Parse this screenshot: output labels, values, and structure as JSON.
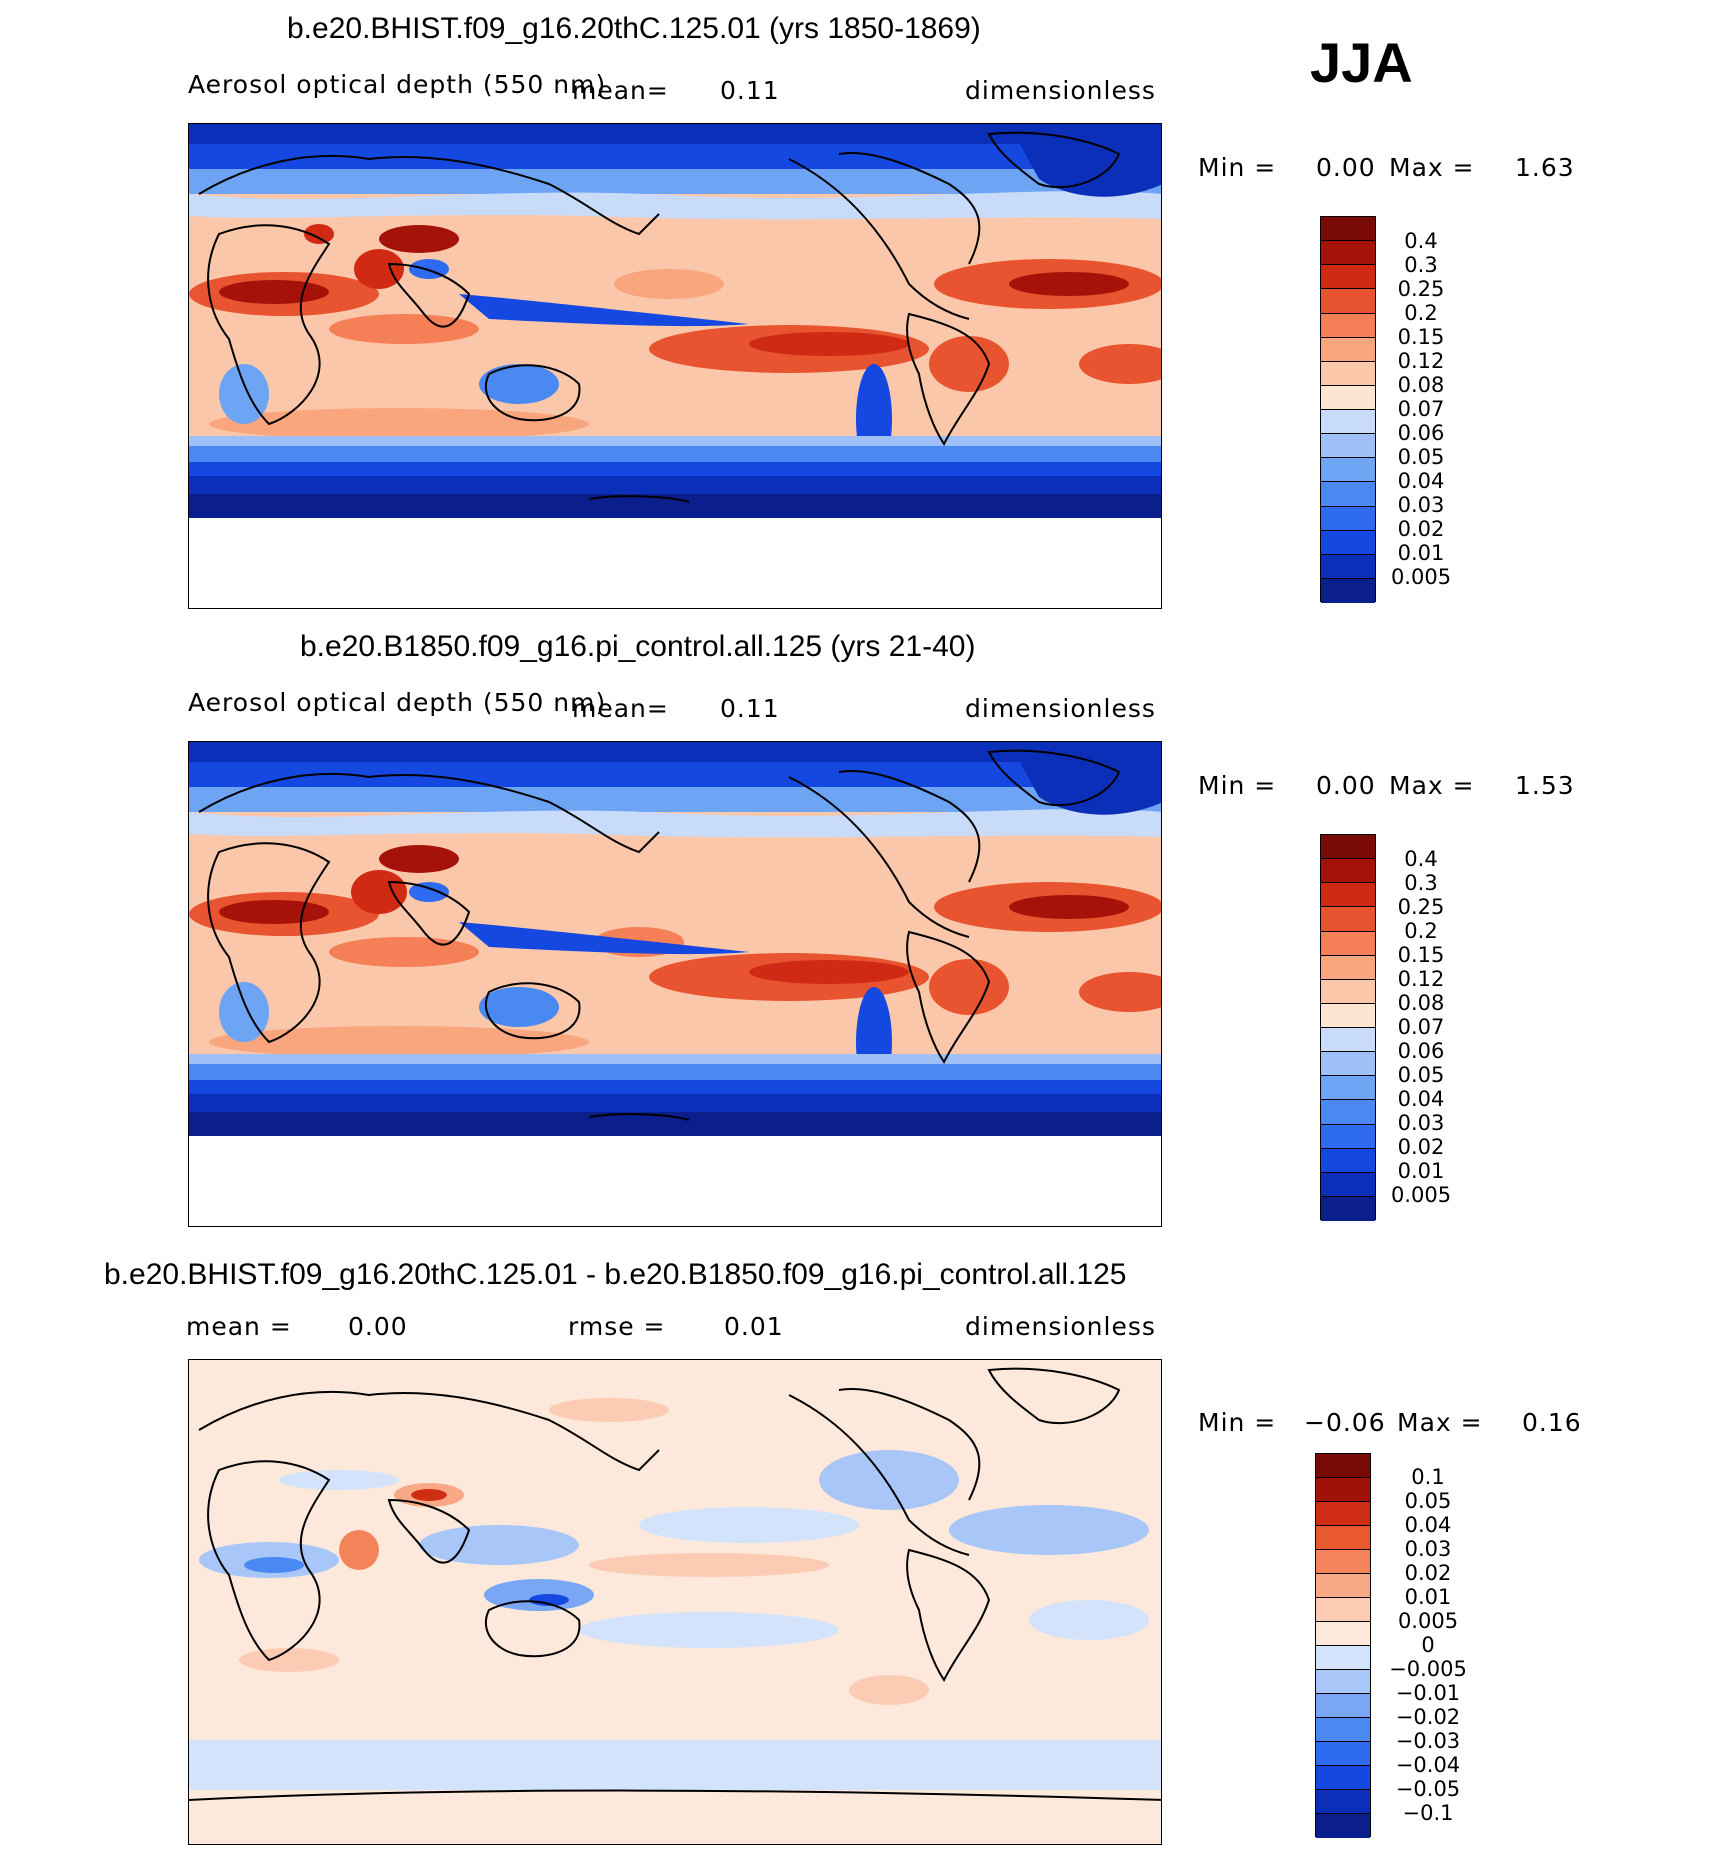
{
  "season": "JJA",
  "colors": {
    "aod_levels": [
      "#0a1f8c",
      "#0b2fb8",
      "#1548e0",
      "#2e6bf0",
      "#4a88f2",
      "#6ea4f4",
      "#9ec0f7",
      "#c8dcfa",
      "#fde5d2",
      "#fbc7aa",
      "#f9a57e",
      "#f57f56",
      "#e8542f",
      "#d02a14",
      "#a5120a",
      "#7a0a05"
    ],
    "diff_levels": [
      "#0a1f8c",
      "#0b2fb8",
      "#1548e0",
      "#2e6bf0",
      "#4a88f2",
      "#7aa7f5",
      "#a9c6f8",
      "#d3e3fb",
      "#fde9dc",
      "#fbccb3",
      "#f9a886",
      "#f5835a",
      "#e9592f",
      "#d02e14",
      "#a01108",
      "#7a0a05"
    ]
  },
  "panels": [
    {
      "title": "b.e20.BHIST.f09_g16.20thC.125.01 (yrs 1850-1869)",
      "left_label": "Aerosol optical depth (550 nm)",
      "mean_label": "mean=",
      "mean_value": "0.11",
      "units": "dimensionless",
      "min_label": "Min =",
      "min_value": "0.00",
      "max_label": "Max =",
      "max_value": "1.63",
      "colorbar_labels": [
        "0.4",
        "0.3",
        "0.25",
        "0.2",
        "0.15",
        "0.12",
        "0.08",
        "0.07",
        "0.06",
        "0.05",
        "0.04",
        "0.03",
        "0.02",
        "0.01",
        "0.005"
      ]
    },
    {
      "title": "b.e20.B1850.f09_g16.pi_control.all.125 (yrs 21-40)",
      "left_label": "Aerosol optical depth (550 nm)",
      "mean_label": "mean=",
      "mean_value": "0.11",
      "units": "dimensionless",
      "min_label": "Min =",
      "min_value": "0.00",
      "max_label": "Max =",
      "max_value": "1.53",
      "colorbar_labels": [
        "0.4",
        "0.3",
        "0.25",
        "0.2",
        "0.15",
        "0.12",
        "0.08",
        "0.07",
        "0.06",
        "0.05",
        "0.04",
        "0.03",
        "0.02",
        "0.01",
        "0.005"
      ]
    },
    {
      "title": "b.e20.BHIST.f09_g16.20thC.125.01 - b.e20.B1850.f09_g16.pi_control.all.125",
      "mean_label": "mean =",
      "mean_value": "0.00",
      "rmse_label": "rmse =",
      "rmse_value": "0.01",
      "units": "dimensionless",
      "min_label": "Min =",
      "min_value": "−0.06",
      "max_label": "Max =",
      "max_value": "0.16",
      "colorbar_labels": [
        "0.1",
        "0.05",
        "0.04",
        "0.03",
        "0.02",
        "0.01",
        "0.005",
        "0",
        "−0.005",
        "−0.01",
        "−0.02",
        "−0.03",
        "−0.04",
        "−0.05",
        "−0.1"
      ]
    }
  ]
}
